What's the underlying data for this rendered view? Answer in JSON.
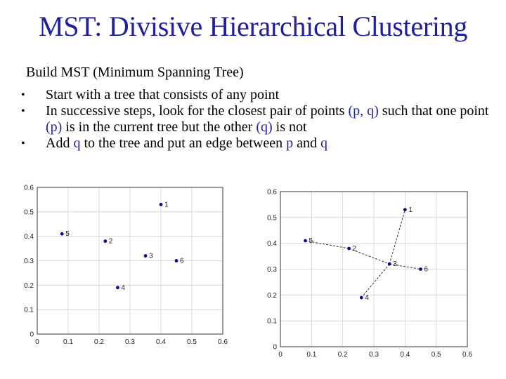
{
  "slide": {
    "title": "MST: Divisive Hierarchical Clustering",
    "subtitle": "Build MST (Minimum Spanning Tree)",
    "bullets": [
      {
        "parts": [
          {
            "t": "Start with a tree that consists of any point",
            "hl": false
          }
        ]
      },
      {
        "parts": [
          {
            "t": "In successive steps, look for the closest pair of points ",
            "hl": false
          },
          {
            "t": "(p, q)",
            "hl": true
          },
          {
            "t": "  such that one point ",
            "hl": false
          },
          {
            "t": "(p)",
            "hl": true
          },
          {
            "t": " is in the current tree but the other ",
            "hl": false
          },
          {
            "t": "(q)",
            "hl": true
          },
          {
            "t": " is not",
            "hl": false
          }
        ]
      },
      {
        "parts": [
          {
            "t": "Add ",
            "hl": false
          },
          {
            "t": "q",
            "hl": true
          },
          {
            "t": " to the tree and put an edge between ",
            "hl": false
          },
          {
            "t": "p",
            "hl": true
          },
          {
            "t": " and ",
            "hl": false
          },
          {
            "t": "q",
            "hl": true
          }
        ]
      }
    ],
    "bullet_glyph": "•"
  },
  "colors": {
    "title": "#1f1f9f",
    "highlight": "#1f1f9f",
    "point": "#0a0a8a",
    "grid": "#d0d0d0"
  },
  "chart_data": [
    {
      "type": "scatter",
      "xlim": [
        0,
        0.6
      ],
      "ylim": [
        0,
        0.6
      ],
      "x_ticks": [
        "0",
        "0.1",
        "0.2",
        "0.3",
        "0.4",
        "0.5",
        "0.6"
      ],
      "y_ticks": [
        "0",
        "0.1",
        "0.2",
        "0.3",
        "0.4",
        "0.5",
        "0.6"
      ],
      "grid": true,
      "points": [
        {
          "label": "1",
          "x": 0.4,
          "y": 0.53
        },
        {
          "label": "2",
          "x": 0.22,
          "y": 0.38
        },
        {
          "label": "3",
          "x": 0.35,
          "y": 0.32
        },
        {
          "label": "4",
          "x": 0.26,
          "y": 0.19
        },
        {
          "label": "5",
          "x": 0.08,
          "y": 0.41
        },
        {
          "label": "6",
          "x": 0.45,
          "y": 0.3
        }
      ],
      "edges": []
    },
    {
      "type": "scatter",
      "xlim": [
        0,
        0.6
      ],
      "ylim": [
        0,
        0.6
      ],
      "x_ticks": [
        "0",
        "0.1",
        "0.2",
        "0.3",
        "0.4",
        "0.5",
        "0.6"
      ],
      "y_ticks": [
        "0",
        "0.1",
        "0.2",
        "0.3",
        "0.4",
        "0.5",
        "0.6"
      ],
      "grid": true,
      "points": [
        {
          "label": "1",
          "x": 0.4,
          "y": 0.53
        },
        {
          "label": "2",
          "x": 0.22,
          "y": 0.38
        },
        {
          "label": "3",
          "x": 0.35,
          "y": 0.32
        },
        {
          "label": "4",
          "x": 0.26,
          "y": 0.19
        },
        {
          "label": "5",
          "x": 0.08,
          "y": 0.41
        },
        {
          "label": "6",
          "x": 0.45,
          "y": 0.3
        }
      ],
      "edges": [
        [
          "5",
          "2"
        ],
        [
          "2",
          "3"
        ],
        [
          "3",
          "1"
        ],
        [
          "3",
          "6"
        ],
        [
          "3",
          "4"
        ]
      ]
    }
  ]
}
